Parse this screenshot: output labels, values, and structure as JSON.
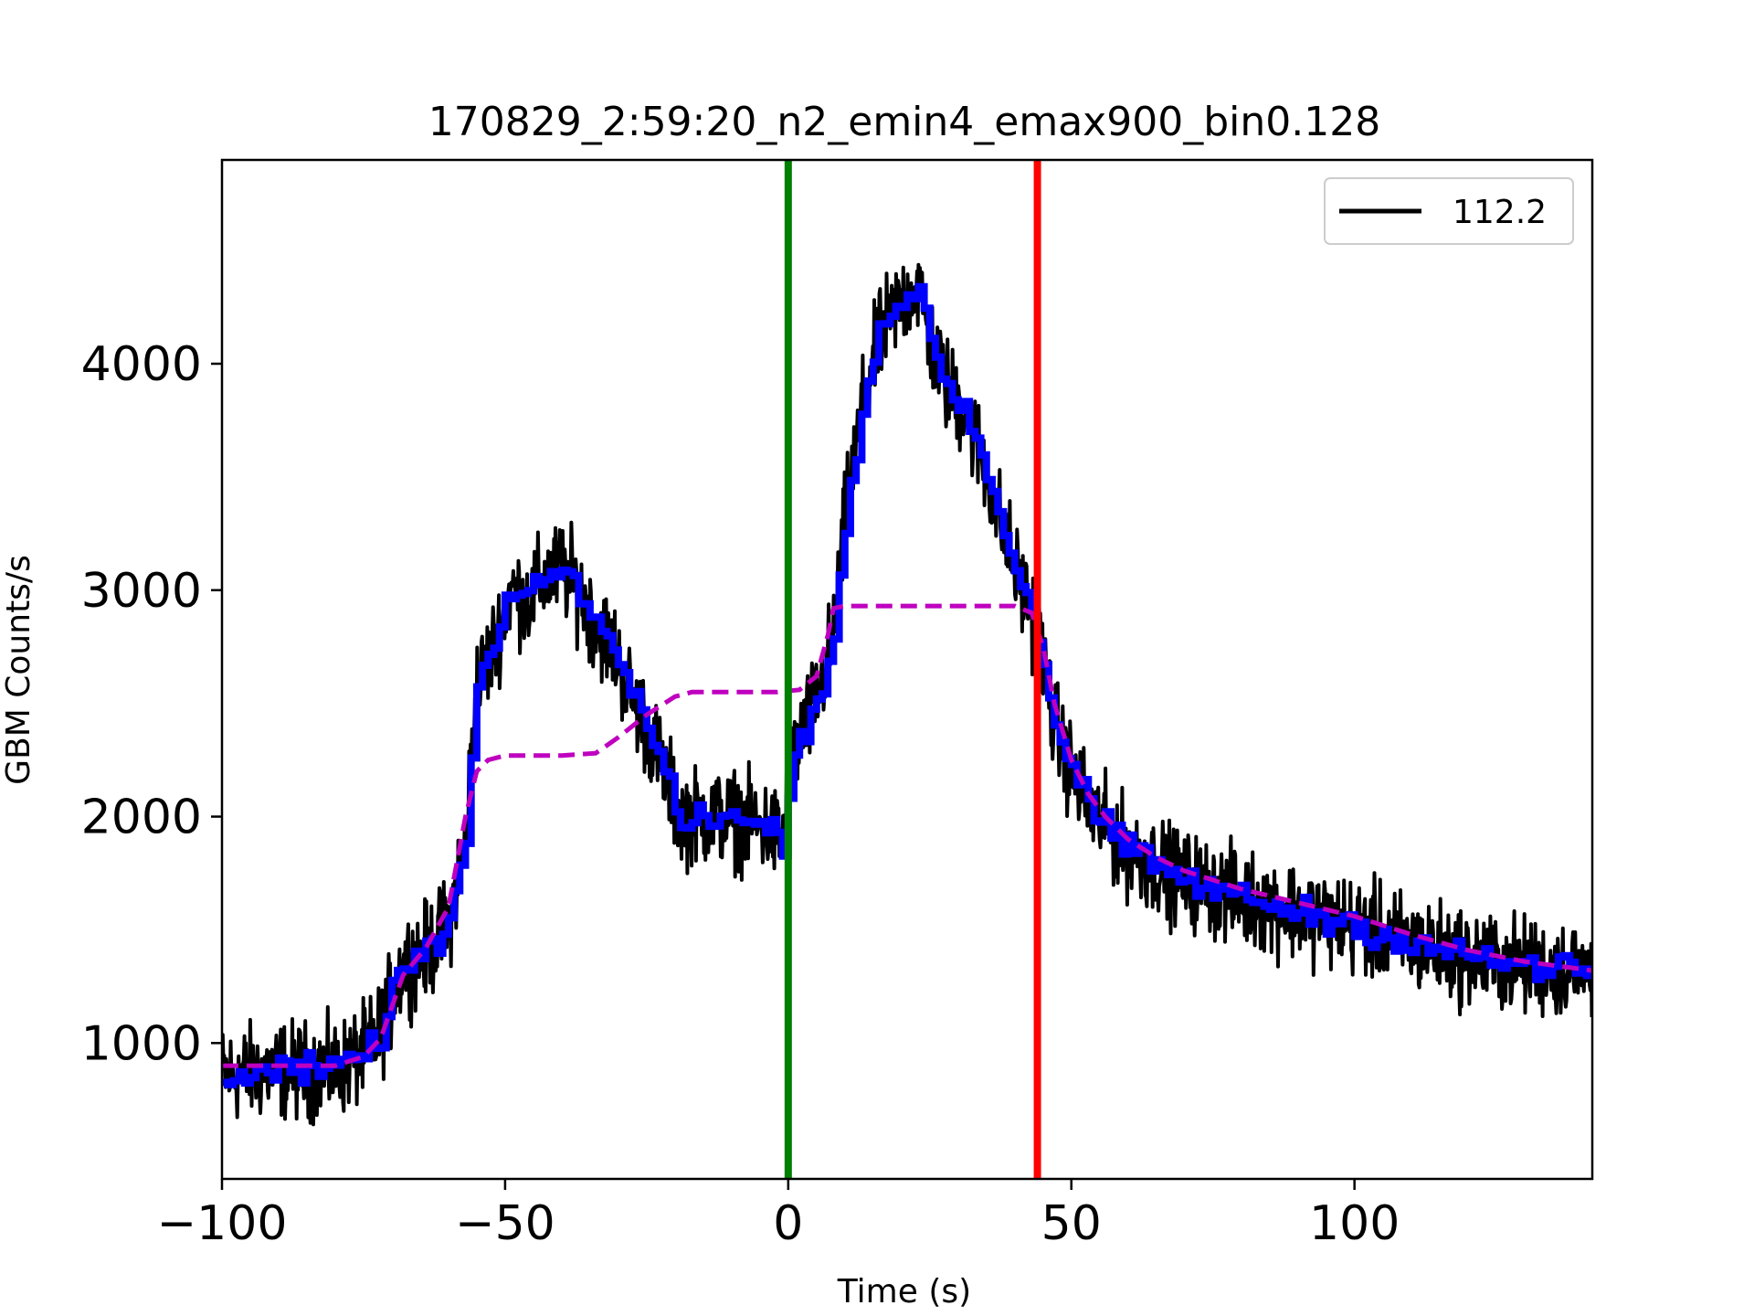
{
  "chart_data": {
    "type": "line",
    "title": "170829_2:59:20_n2_emin4_emax900_bin0.128",
    "xlabel": "Time (s)",
    "ylabel": "GBM Counts/s",
    "xlim": [
      -100,
      142
    ],
    "ylim": [
      400,
      4900
    ],
    "xticks": [
      -100,
      -50,
      0,
      50,
      100
    ],
    "xtick_labels": [
      "−100",
      "−50",
      "0",
      "50",
      "100"
    ],
    "yticks": [
      1000,
      2000,
      3000,
      4000
    ],
    "ytick_labels": [
      "1000",
      "2000",
      "3000",
      "4000"
    ],
    "grid": false,
    "legend": {
      "placement": "top-right",
      "entries": [
        {
          "label": "112.2",
          "color": "#000000"
        }
      ]
    },
    "vlines": [
      {
        "x": 0,
        "color": "#008000"
      },
      {
        "x": 44,
        "color": "#ff0000"
      }
    ],
    "series": [
      {
        "name": "112.2",
        "style": "noisy-line",
        "color": "#000000",
        "x": [
          -100,
          -90,
          -80,
          -75,
          -72,
          -68,
          -64,
          -60,
          -57,
          -55,
          -52,
          -49,
          -46,
          -43,
          -40,
          -37,
          -34,
          -31,
          -28,
          -25,
          -22,
          -19,
          -16,
          -12,
          -8,
          -4,
          -1,
          0,
          2,
          4,
          6,
          8,
          10,
          13,
          16,
          19,
          21,
          23,
          25,
          28,
          31,
          34,
          37,
          40,
          43,
          45,
          47,
          50,
          53,
          56,
          60,
          65,
          70,
          75,
          80,
          90,
          100,
          110,
          120,
          130,
          142
        ],
        "values": [
          860,
          880,
          880,
          950,
          1050,
          1350,
          1400,
          1520,
          1900,
          2580,
          2750,
          3000,
          2950,
          3050,
          3100,
          3000,
          2850,
          2750,
          2550,
          2400,
          2200,
          2000,
          2000,
          2000,
          1980,
          1950,
          1900,
          2150,
          2350,
          2450,
          2600,
          2800,
          3300,
          3800,
          4100,
          4250,
          4300,
          4350,
          4100,
          3900,
          3800,
          3600,
          3350,
          3100,
          2900,
          2700,
          2400,
          2200,
          2050,
          1950,
          1850,
          1780,
          1720,
          1680,
          1640,
          1580,
          1520,
          1440,
          1380,
          1340,
          1320
        ],
        "noise": 130
      },
      {
        "name": "",
        "style": "step-line",
        "color": "#0000ff",
        "x": [
          -100,
          -90,
          -80,
          -75,
          -72,
          -68,
          -64,
          -60,
          -57,
          -55,
          -52,
          -49,
          -46,
          -43,
          -40,
          -37,
          -34,
          -31,
          -28,
          -25,
          -22,
          -19,
          -16,
          -12,
          -8,
          -4,
          -1,
          0,
          2,
          4,
          6,
          8,
          10,
          13,
          16,
          19,
          21,
          23,
          25,
          28,
          31,
          34,
          37,
          40,
          43,
          45,
          47,
          50,
          53,
          56,
          60,
          65,
          70,
          75,
          80,
          90,
          100,
          110,
          120,
          130,
          142
        ],
        "values": [
          860,
          880,
          880,
          950,
          1050,
          1350,
          1400,
          1520,
          1900,
          2580,
          2750,
          3000,
          2950,
          3050,
          3100,
          3000,
          2850,
          2750,
          2550,
          2400,
          2200,
          2000,
          2000,
          2000,
          1980,
          1950,
          1900,
          2150,
          2350,
          2450,
          2600,
          2800,
          3300,
          3800,
          4100,
          4250,
          4300,
          4350,
          4100,
          3900,
          3800,
          3600,
          3350,
          3100,
          2900,
          2700,
          2400,
          2200,
          2050,
          1950,
          1850,
          1780,
          1720,
          1680,
          1640,
          1580,
          1520,
          1440,
          1380,
          1340,
          1320
        ]
      },
      {
        "name": "",
        "style": "dashed-line",
        "color": "#bf00bf",
        "x": [
          -100,
          -90,
          -80,
          -75,
          -72,
          -68,
          -64,
          -60,
          -57,
          -55,
          -53,
          -50,
          -40,
          -34,
          -30,
          -25,
          -20,
          -17,
          -10,
          -2,
          2,
          5,
          7,
          8,
          10,
          20,
          30,
          40,
          43,
          45,
          47,
          50,
          53,
          56,
          60,
          65,
          70,
          75,
          80,
          90,
          100,
          110,
          120,
          130,
          142
        ],
        "values": [
          900,
          900,
          900,
          940,
          1020,
          1300,
          1420,
          1600,
          2000,
          2200,
          2250,
          2270,
          2270,
          2280,
          2350,
          2450,
          2530,
          2550,
          2550,
          2550,
          2560,
          2620,
          2800,
          2920,
          2930,
          2930,
          2930,
          2930,
          2900,
          2750,
          2500,
          2250,
          2100,
          2000,
          1900,
          1820,
          1760,
          1720,
          1680,
          1620,
          1560,
          1480,
          1410,
          1360,
          1320
        ]
      }
    ]
  }
}
